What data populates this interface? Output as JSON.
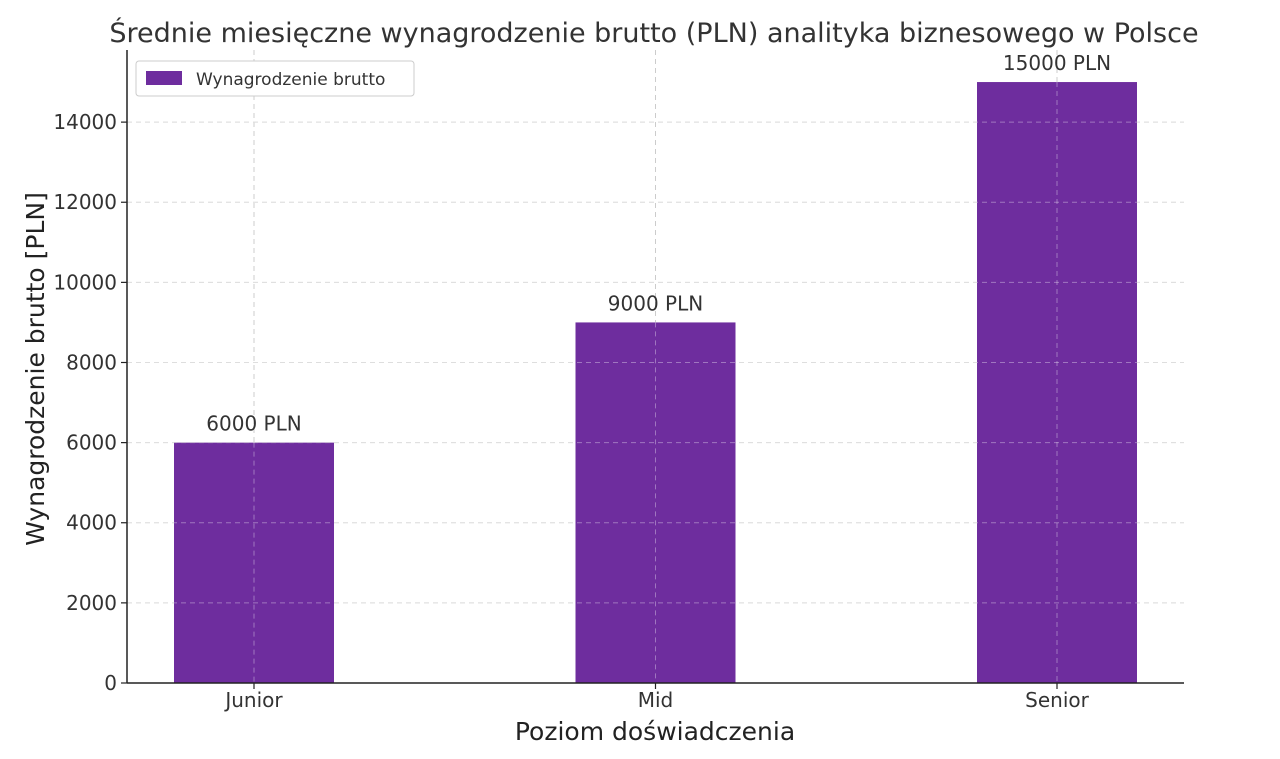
{
  "chart_data": {
    "type": "bar",
    "title": "Średnie miesięczne wynagrodzenie brutto (PLN) analityka biznesowego w Polsce",
    "xlabel": "Poziom doświadczenia",
    "ylabel": "Wynagrodzenie brutto [PLN]",
    "categories": [
      "Junior",
      "Mid",
      "Senior"
    ],
    "series": [
      {
        "name": "Wynagrodzenie brutto",
        "values": [
          6000,
          9000,
          15000
        ],
        "color": "#6e2d9e"
      }
    ],
    "data_labels": [
      "6000 PLN",
      "9000 PLN",
      "15000 PLN"
    ],
    "ylim": [
      0,
      15000
    ],
    "yticks": [
      0,
      2000,
      4000,
      6000,
      8000,
      10000,
      12000,
      14000
    ],
    "grid": true,
    "legend_position": "top-left"
  }
}
